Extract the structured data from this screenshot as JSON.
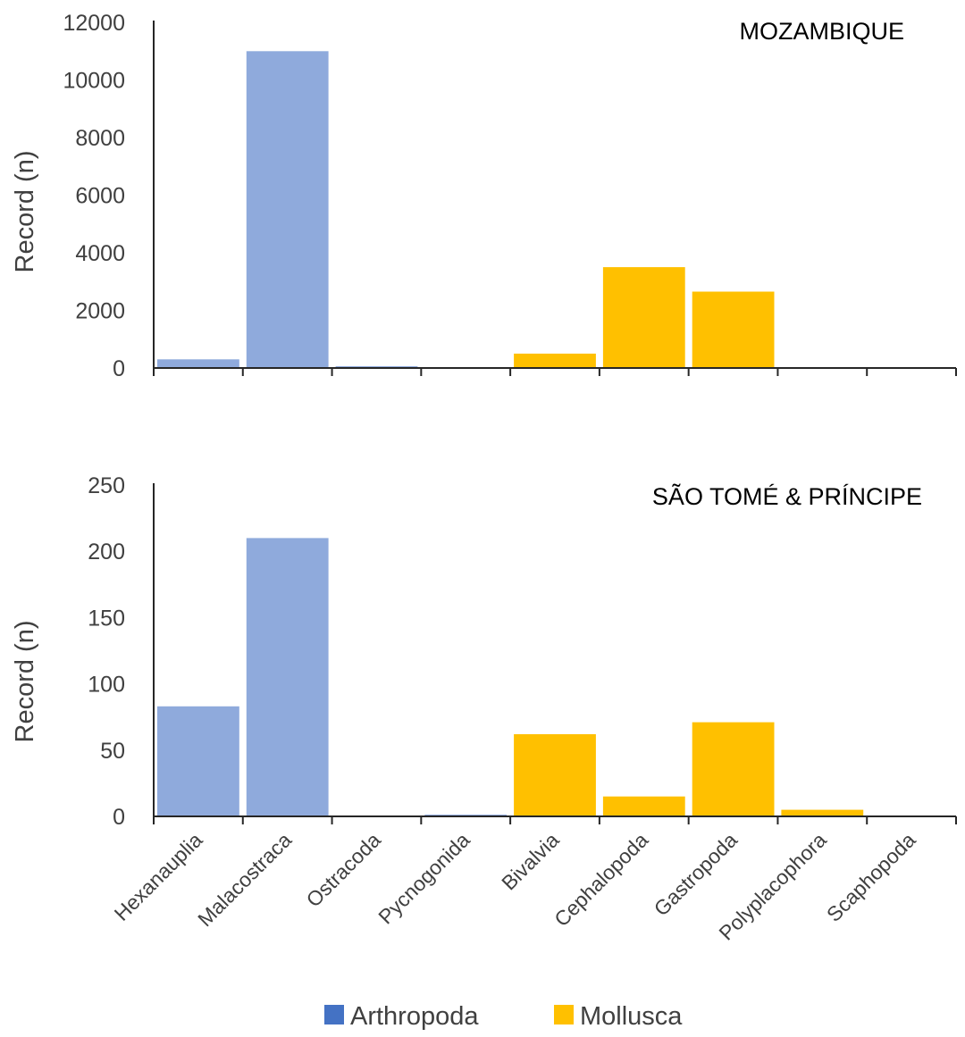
{
  "legend": [
    {
      "name": "Arthropoda",
      "color": "#4472c4"
    },
    {
      "name": "Mollusca",
      "color": "#ffc000"
    }
  ],
  "colors": {
    "arthropoda_bar": "#8faadc",
    "mollusca_bar": "#ffc000",
    "axis": "#262626",
    "text": "#404040"
  },
  "chart_data": [
    {
      "type": "bar",
      "title": "MOZAMBIQUE",
      "ylabel": "Record (n)",
      "xlabel": "",
      "ylim": [
        0,
        12000
      ],
      "yticks": [
        "0",
        "2000",
        "4000",
        "6000",
        "8000",
        "10000",
        "12000"
      ],
      "categories": [
        "Hexanauplia",
        "Malacostraca",
        "Ostracoda",
        "Pycnogonida",
        "Bivalvia",
        "Cephalopoda",
        "Gastropoda",
        "Polyplacophora",
        "Scaphopoda"
      ],
      "phylum": [
        "Arthropoda",
        "Arthropoda",
        "Arthropoda",
        "Arthropoda",
        "Mollusca",
        "Mollusca",
        "Mollusca",
        "Mollusca",
        "Mollusca"
      ],
      "values": [
        300,
        11000,
        50,
        0,
        500,
        3500,
        2650,
        0,
        0
      ]
    },
    {
      "type": "bar",
      "title": "SÃO TOMÉ & PRÍNCIPE",
      "ylabel": "Record (n)",
      "xlabel": "",
      "ylim": [
        0,
        250
      ],
      "yticks": [
        "0",
        "50",
        "100",
        "150",
        "200",
        "250"
      ],
      "categories": [
        "Hexanauplia",
        "Malacostraca",
        "Ostracoda",
        "Pycnogonida",
        "Bivalvia",
        "Cephalopoda",
        "Gastropoda",
        "Polyplacophora",
        "Scaphopoda"
      ],
      "phylum": [
        "Arthropoda",
        "Arthropoda",
        "Arthropoda",
        "Arthropoda",
        "Mollusca",
        "Mollusca",
        "Mollusca",
        "Mollusca",
        "Mollusca"
      ],
      "values": [
        83,
        210,
        0,
        1,
        62,
        15,
        71,
        5,
        0
      ]
    }
  ]
}
